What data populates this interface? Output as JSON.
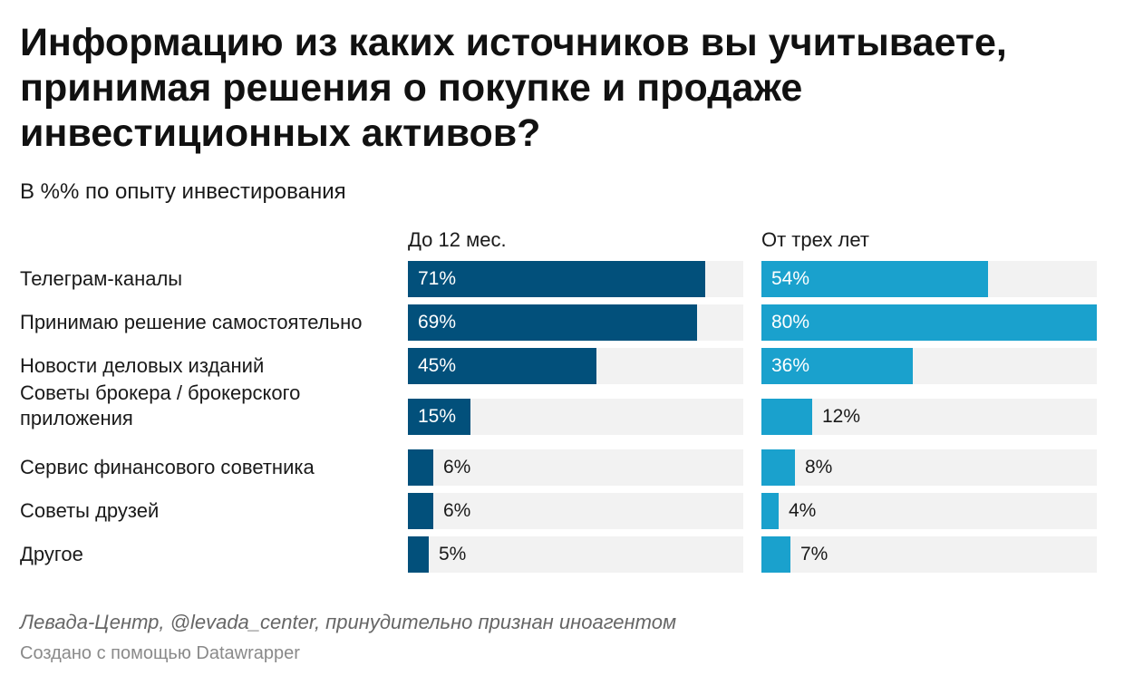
{
  "chart_data": {
    "type": "bar",
    "orientation": "horizontal",
    "title": "Информацию из каких источников вы учитываете, принимая решения о покупке и продаже инвестиционных активов?",
    "subtitle": "В %% по опыту инвестирования",
    "categories": [
      "Телеграм-каналы",
      "Принимаю решение самостоятельно",
      "Новости деловых изданий",
      "Советы брокера / брокерского приложения",
      "Сервис финансового советника",
      "Советы друзей",
      "Другое"
    ],
    "series": [
      {
        "name": "До 12 мес.",
        "color": "#02507b",
        "values": [
          71,
          69,
          45,
          15,
          6,
          6,
          5
        ],
        "labels": [
          "71%",
          "69%",
          "45%",
          "15%",
          "6%",
          "6%",
          "5%"
        ]
      },
      {
        "name": "От трех лет",
        "color": "#1aa1cd",
        "values": [
          54,
          80,
          36,
          12,
          8,
          4,
          7
        ],
        "labels": [
          "54%",
          "80%",
          "36%",
          "12%",
          "8%",
          "4%",
          "7%"
        ]
      }
    ],
    "xlim": [
      0,
      80
    ],
    "grid": false,
    "track_color": "#f2f2f2",
    "source": "Левада-Центр, @levada_center, принудительно признан иноагентом",
    "credit": "Создано с помощью Datawrapper"
  }
}
